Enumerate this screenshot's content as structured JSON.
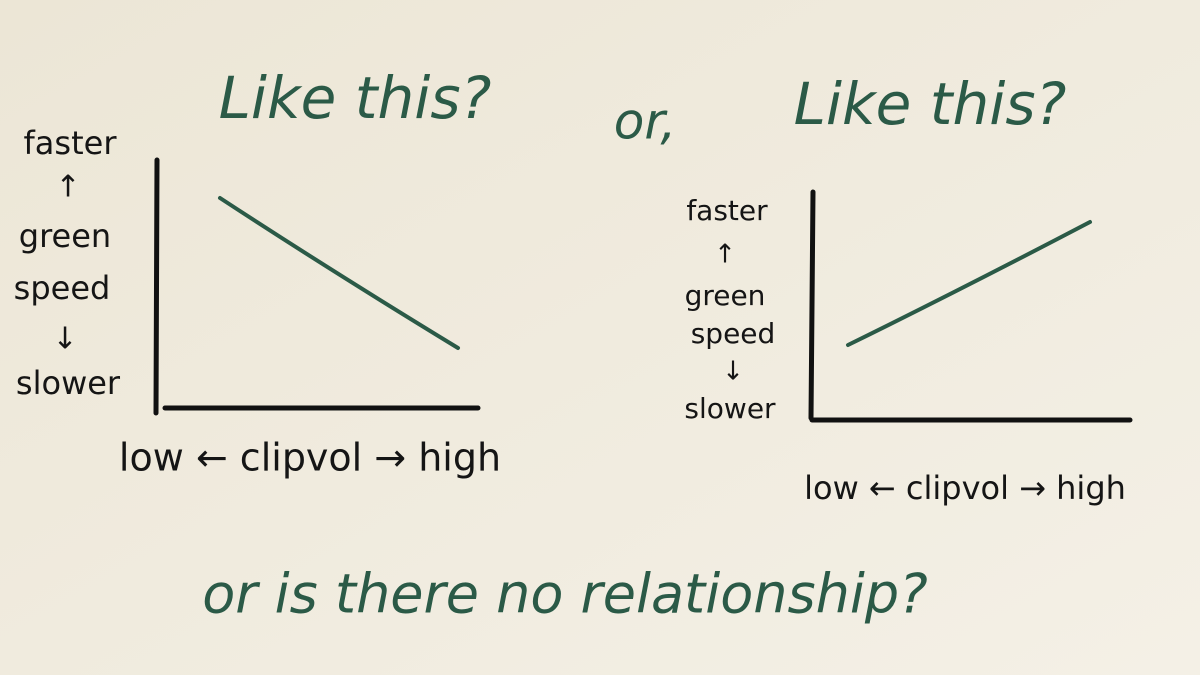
{
  "question": {
    "first": "Like this?",
    "or": "or,",
    "second": "Like this?"
  },
  "sketches": [
    {
      "y_label": {
        "top": "faster",
        "up_arrow": "↑",
        "middle": [
          "green",
          "speed"
        ],
        "down_arrow": "↓",
        "bottom": "slower"
      },
      "x_label": "low ← clipvol → high"
    },
    {
      "y_label": {
        "top": "faster",
        "up_arrow": "↑",
        "middle": [
          "green",
          "speed"
        ],
        "down_arrow": "↓",
        "bottom": "slower"
      },
      "x_label": "low ← clipvol → high"
    }
  ],
  "footer": "or is there no relationship?"
}
